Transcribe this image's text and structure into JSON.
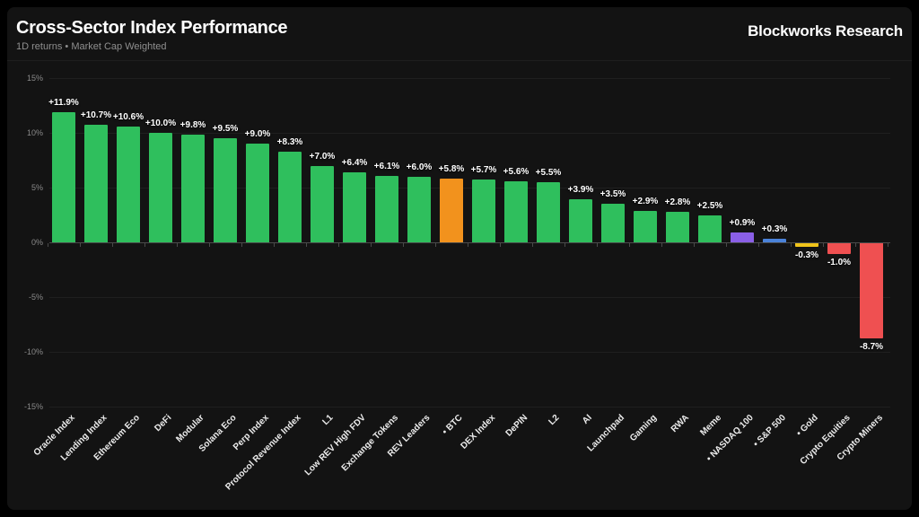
{
  "header": {
    "title": "Cross-Sector Index Performance",
    "subtitle": "1D returns • Market Cap Weighted",
    "brand": "Blockworks Research"
  },
  "colors": {
    "green": "#2fbf5d",
    "orange": "#f2921d",
    "purple": "#8a5fe6",
    "blue": "#4a82d9",
    "yellow": "#f0c41a",
    "red": "#ef5051",
    "background": "#131313",
    "outer_background": "#000000",
    "grid": "#1f1f1f",
    "axis": "#4a4a4a",
    "y_label_text": "#8a8a8a",
    "category_text": "#ececec",
    "value_text": "#ffffff"
  },
  "chart_data": {
    "type": "bar",
    "title": "Cross-Sector Index Performance",
    "subtitle": "1D returns • Market Cap Weighted",
    "xlabel": "",
    "ylabel": "",
    "ylim": [
      -15,
      15
    ],
    "grid": true,
    "legend": false,
    "y_ticks": [
      "15%",
      "10%",
      "5%",
      "0%",
      "-5%",
      "-10%",
      "-15%"
    ],
    "categories": [
      "Oracle Index",
      "Lending Index",
      "Ethereum Eco",
      "DeFi",
      "Modular",
      "Solana Eco",
      "Perp Index",
      "Protocol Revenue Index",
      "L1",
      "Low REV High FDV",
      "Exchange Tokens",
      "REV Leaders",
      "• BTC",
      "DEX Index",
      "DePIN",
      "L2",
      "AI",
      "Launchpad",
      "Gaming",
      "RWA",
      "Meme",
      "• NASDAQ 100",
      "• S&P 500",
      "• Gold",
      "Crypto Equities",
      "Crypto Miners"
    ],
    "values": [
      11.9,
      10.7,
      10.6,
      10.0,
      9.8,
      9.5,
      9.0,
      8.3,
      7.0,
      6.4,
      6.1,
      6.0,
      5.8,
      5.7,
      5.6,
      5.5,
      3.9,
      3.5,
      2.9,
      2.8,
      2.5,
      0.9,
      0.3,
      -0.3,
      -1.0,
      -8.7
    ],
    "value_labels": [
      "+11.9%",
      "+10.7%",
      "+10.6%",
      "+10.0%",
      "+9.8%",
      "+9.5%",
      "+9.0%",
      "+8.3%",
      "+7.0%",
      "+6.4%",
      "+6.1%",
      "+6.0%",
      "+5.8%",
      "+5.7%",
      "+5.6%",
      "+5.5%",
      "+3.9%",
      "+3.5%",
      "+2.9%",
      "+2.8%",
      "+2.5%",
      "+0.9%",
      "+0.3%",
      "-0.3%",
      "-1.0%",
      "-8.7%"
    ],
    "bar_colors": [
      "green",
      "green",
      "green",
      "green",
      "green",
      "green",
      "green",
      "green",
      "green",
      "green",
      "green",
      "green",
      "orange",
      "green",
      "green",
      "green",
      "green",
      "green",
      "green",
      "green",
      "green",
      "purple",
      "blue",
      "yellow",
      "red",
      "red"
    ]
  }
}
